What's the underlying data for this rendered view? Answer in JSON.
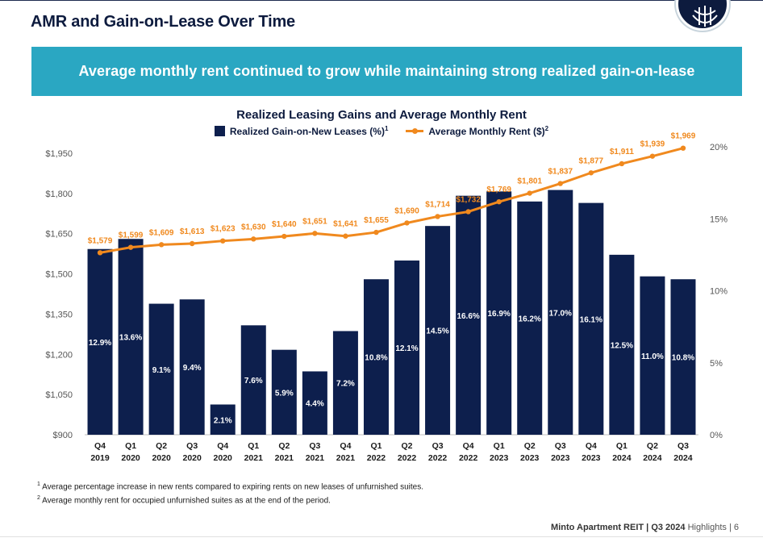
{
  "page": {
    "title": "AMR and Gain-on-Lease Over Time",
    "banner": "Average monthly rent continued to grow while maintaining strong realized gain-on-lease",
    "footnotes": [
      {
        "mark": "1",
        "text": "Average percentage increase in new rents compared to expiring rents on new leases of unfurnished suites."
      },
      {
        "mark": "2",
        "text": "Average monthly rent for occupied unfurnished suites as at the end of the period."
      }
    ],
    "footer": {
      "company": "Minto Apartment REIT",
      "separator": " | ",
      "period": "Q3 2024",
      "section": " Highlights",
      "page_sep": " | ",
      "page_num": "6"
    }
  },
  "chart_data": {
    "type": "bar",
    "title": "Realized Leasing Gains and Average Monthly Rent",
    "legend": [
      {
        "name": "Realized Gain-on-New Leases (%)",
        "sup": "1",
        "style": "bar"
      },
      {
        "name": "Average Monthly Rent ($)",
        "sup": "2",
        "style": "line"
      }
    ],
    "legend_position": "top-center",
    "categories": [
      [
        "Q4",
        "2019"
      ],
      [
        "Q1",
        "2020"
      ],
      [
        "Q2",
        "2020"
      ],
      [
        "Q3",
        "2020"
      ],
      [
        "Q4",
        "2020"
      ],
      [
        "Q1",
        "2021"
      ],
      [
        "Q2",
        "2021"
      ],
      [
        "Q3",
        "2021"
      ],
      [
        "Q4",
        "2021"
      ],
      [
        "Q1",
        "2022"
      ],
      [
        "Q2",
        "2022"
      ],
      [
        "Q3",
        "2022"
      ],
      [
        "Q4",
        "2022"
      ],
      [
        "Q1",
        "2023"
      ],
      [
        "Q2",
        "2023"
      ],
      [
        "Q3",
        "2023"
      ],
      [
        "Q4",
        "2023"
      ],
      [
        "Q1",
        "2024"
      ],
      [
        "Q2",
        "2024"
      ],
      [
        "Q3",
        "2024"
      ]
    ],
    "series": [
      {
        "name": "Realized Gain-on-New Leases (%)",
        "type": "bar",
        "axis": "right",
        "color": "#0d1f4d",
        "values": [
          12.9,
          13.6,
          9.1,
          9.4,
          2.1,
          7.6,
          5.9,
          4.4,
          7.2,
          10.8,
          12.1,
          14.5,
          16.6,
          16.9,
          16.2,
          17.0,
          16.1,
          12.5,
          11.0,
          10.8
        ],
        "labels": [
          "12.9%",
          "13.6%",
          "9.1%",
          "9.4%",
          "2.1%",
          "7.6%",
          "5.9%",
          "4.4%",
          "7.2%",
          "10.8%",
          "12.1%",
          "14.5%",
          "16.6%",
          "16.9%",
          "16.2%",
          "17.0%",
          "16.1%",
          "12.5%",
          "11.0%",
          "10.8%"
        ]
      },
      {
        "name": "Average Monthly Rent ($)",
        "type": "line",
        "axis": "left",
        "color": "#f0891e",
        "values": [
          1579,
          1599,
          1609,
          1613,
          1623,
          1630,
          1640,
          1651,
          1641,
          1655,
          1690,
          1714,
          1732,
          1769,
          1801,
          1837,
          1877,
          1911,
          1939,
          1969
        ],
        "labels": [
          "$1,579",
          "$1,599",
          "$1,609",
          "$1,613",
          "$1,623",
          "$1,630",
          "$1,640",
          "$1,651",
          "$1,641",
          "$1,655",
          "$1,690",
          "$1,714",
          "$1,732",
          "$1,769",
          "$1,801",
          "$1,837",
          "$1,877",
          "$1,911",
          "$1,939",
          "$1,969"
        ]
      }
    ],
    "y_left": {
      "min": 900,
      "max": 1950,
      "ticks": [
        "$900",
        "$1,050",
        "$1,200",
        "$1,350",
        "$1,500",
        "$1,650",
        "$1,800",
        "$1,950"
      ],
      "tick_values": [
        900,
        1050,
        1200,
        1350,
        1500,
        1650,
        1800,
        1950
      ]
    },
    "y_right": {
      "min": 0,
      "max": 20,
      "ticks": [
        "0%",
        "5%",
        "10%",
        "15%",
        "20%"
      ],
      "tick_values": [
        0,
        5,
        10,
        15,
        20
      ]
    },
    "grid": false
  }
}
